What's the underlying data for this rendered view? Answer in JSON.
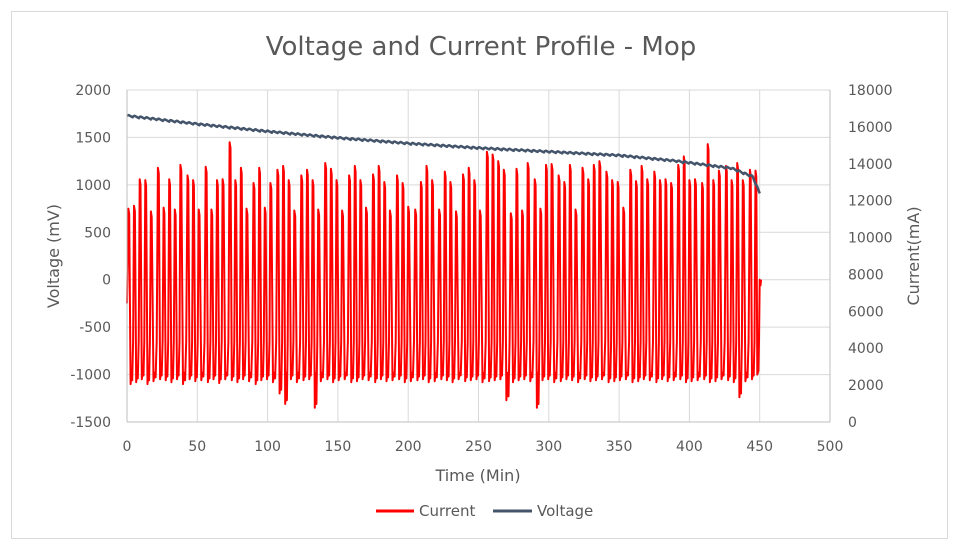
{
  "chart_data": {
    "type": "line",
    "title": "Voltage and Current Profile - Mop",
    "xlabel": "Time (Min)",
    "ylabel": "Voltage (mV)",
    "y2label": "Current(mA)",
    "xlim": [
      0,
      500
    ],
    "ylim": [
      -1500,
      2000
    ],
    "y2lim": [
      0,
      18000
    ],
    "x_ticks": [
      0,
      50,
      100,
      150,
      200,
      250,
      300,
      350,
      400,
      450,
      500
    ],
    "y_ticks": [
      -1500,
      -1000,
      -500,
      0,
      500,
      1000,
      1500,
      2000
    ],
    "y2_ticks": [
      0,
      2000,
      4000,
      6000,
      8000,
      10000,
      12000,
      14000,
      16000,
      18000
    ],
    "grid": true,
    "legend_position": "bottom",
    "series": [
      {
        "name": "Current",
        "axis": "left",
        "color": "#ff0000",
        "description": "cyclic current pulses: baseline near -1000, peaks 700-1450 roughly every 4-5 min",
        "peak_times": [
          1,
          5,
          9,
          13,
          17,
          22,
          26,
          30,
          34,
          38,
          43,
          47,
          51,
          56,
          60,
          64,
          68,
          73,
          77,
          81,
          85,
          90,
          94,
          98,
          102,
          107,
          111,
          115,
          119,
          124,
          128,
          132,
          136,
          141,
          145,
          149,
          153,
          158,
          162,
          166,
          170,
          175,
          179,
          183,
          187,
          192,
          196,
          200,
          205,
          209,
          213,
          217,
          222,
          226,
          230,
          234,
          239,
          243,
          247,
          251,
          256,
          260,
          264,
          268,
          273,
          277,
          281,
          285,
          290,
          294,
          298,
          302,
          307,
          311,
          315,
          319,
          324,
          328,
          332,
          336,
          341,
          345,
          349,
          353,
          358,
          362,
          366,
          370,
          375,
          379,
          383,
          387,
          392,
          396,
          400,
          404,
          409,
          413,
          417,
          421,
          426,
          430,
          434,
          438,
          443,
          447,
          450
        ],
        "peak_values": [
          750,
          780,
          1060,
          1050,
          720,
          1180,
          760,
          1060,
          740,
          1210,
          1100,
          1050,
          740,
          1190,
          740,
          1050,
          1060,
          1450,
          1050,
          1180,
          750,
          1020,
          1180,
          760,
          1020,
          1160,
          1200,
          1050,
          730,
          1100,
          1160,
          1050,
          740,
          1230,
          1170,
          1050,
          730,
          1100,
          1200,
          1050,
          760,
          1110,
          1200,
          1030,
          730,
          1100,
          1020,
          770,
          740,
          1030,
          1200,
          1050,
          740,
          1140,
          1030,
          720,
          1110,
          1180,
          1050,
          730,
          1350,
          1320,
          1250,
          1160,
          700,
          1170,
          730,
          1230,
          1060,
          750,
          1210,
          1220,
          1100,
          1030,
          1210,
          740,
          1180,
          1060,
          1210,
          1250,
          1140,
          1050,
          1030,
          760,
          1160,
          1040,
          1200,
          1060,
          1140,
          1050,
          1060,
          1020,
          1210,
          1300,
          1050,
          1060,
          1020,
          1430,
          1050,
          1150,
          1200,
          1050,
          1230,
          1050,
          1160,
          1150,
          0
        ],
        "trough_values": [
          -1050,
          -1100,
          -1080,
          -1050,
          -1100,
          -1070,
          -1050,
          -1060,
          -1080,
          -1050,
          -1100,
          -1050,
          -1070,
          -1060,
          -1080,
          -1050,
          -1090,
          -1050,
          -1060,
          -1080,
          -1050,
          -1070,
          -1100,
          -1060,
          -1050,
          -1080,
          -1200,
          -1310,
          -1050,
          -1080,
          -1060,
          -1050,
          -1350,
          -1070,
          -1050,
          -1080,
          -1060,
          -1050,
          -1080,
          -1070,
          -1050,
          -1060,
          -1080,
          -1050,
          -1070,
          -1060,
          -1050,
          -1080,
          -1070,
          -1060,
          -1050,
          -1080,
          -1070,
          -1050,
          -1060,
          -1080,
          -1050,
          -1070,
          -1060,
          -1050,
          -1080,
          -1070,
          -1060,
          -1050,
          -1270,
          -1080,
          -1060,
          -1050,
          -1070,
          -1350,
          -1060,
          -1050,
          -1080,
          -1070,
          -1050,
          -1060,
          -1080,
          -1050,
          -1070,
          -1060,
          -1050,
          -1080,
          -1070,
          -1060,
          -1050,
          -1080,
          -1070,
          -1050,
          -1060,
          -1080,
          -1050,
          -1070,
          -1060,
          -1050,
          -1080,
          -1070,
          -1060,
          -1050,
          -1080,
          -1070,
          -1050,
          -1060,
          -1080,
          -1240,
          -1070,
          -1050,
          -1000
        ]
      },
      {
        "name": "Voltage",
        "axis": "right",
        "color": "#44546a",
        "points": [
          [
            0,
            16600
          ],
          [
            50,
            16150
          ],
          [
            100,
            15750
          ],
          [
            150,
            15400
          ],
          [
            200,
            15100
          ],
          [
            250,
            14850
          ],
          [
            300,
            14650
          ],
          [
            350,
            14450
          ],
          [
            390,
            14150
          ],
          [
            430,
            13750
          ],
          [
            445,
            13300
          ],
          [
            450,
            12400
          ]
        ]
      }
    ]
  }
}
